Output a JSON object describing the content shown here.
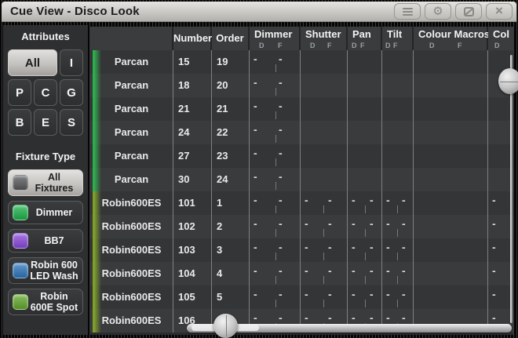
{
  "window": {
    "title": "Cue View - Disco Look",
    "titlebar_buttons": [
      {
        "name": "menu",
        "icon": "menu-icon"
      },
      {
        "name": "settings",
        "icon": "gear-icon",
        "glyph": "⚙"
      },
      {
        "name": "appearance",
        "icon": "appearance-icon"
      },
      {
        "name": "close",
        "icon": "close-icon",
        "glyph": "×"
      }
    ]
  },
  "sidebar": {
    "attributes_header": "Attributes",
    "attribute_buttons": [
      {
        "label": "All",
        "selected": true,
        "span": 2
      },
      {
        "label": "I",
        "selected": false
      },
      {
        "label": "P",
        "selected": false
      },
      {
        "label": "C",
        "selected": false
      },
      {
        "label": "G",
        "selected": false
      },
      {
        "label": "B",
        "selected": false
      },
      {
        "label": "E",
        "selected": false
      },
      {
        "label": "S",
        "selected": false
      }
    ],
    "fixture_type_header": "Fixture Type",
    "fixture_buttons": [
      {
        "label": "All Fixtures",
        "selected": true,
        "swatch": "#58595b"
      },
      {
        "label": "Dimmer",
        "selected": false,
        "swatch": "#1fb24b"
      },
      {
        "label": "BB7",
        "selected": false,
        "swatch": "#8a49dc"
      },
      {
        "label": "Robin 600 LED Wash",
        "selected": false,
        "swatch": "#2e76bc"
      },
      {
        "label": "Robin 600E Spot",
        "selected": false,
        "swatch": "#63a82e"
      }
    ]
  },
  "table": {
    "dash": "-",
    "columns": [
      {
        "key": "name",
        "label": ""
      },
      {
        "key": "number",
        "label": "Number"
      },
      {
        "key": "order",
        "label": "Order"
      },
      {
        "key": "dimmer",
        "label": "Dimmer",
        "sub": [
          "D",
          "F"
        ]
      },
      {
        "key": "shutter",
        "label": "Shutter",
        "sub": [
          "D",
          "F"
        ]
      },
      {
        "key": "pan",
        "label": "Pan",
        "sub": [
          "D",
          "F"
        ]
      },
      {
        "key": "tilt",
        "label": "Tilt",
        "sub": [
          "D",
          "F"
        ]
      },
      {
        "key": "colour_macros",
        "label": "Colour Macros",
        "sub": [
          "D",
          "F"
        ]
      },
      {
        "key": "col",
        "label": "Col",
        "sub": [
          "D"
        ]
      }
    ],
    "stripe_colors": {
      "parcan": "#2fae4e",
      "robin": "#7fa12b"
    },
    "rows": [
      {
        "fixture": "Parcan",
        "number": "15",
        "order": "19",
        "stripe": "parcan",
        "values": {
          "dimmer": [
            "-",
            "-"
          ]
        }
      },
      {
        "fixture": "Parcan",
        "number": "18",
        "order": "20",
        "stripe": "parcan",
        "values": {
          "dimmer": [
            "-",
            "-"
          ]
        }
      },
      {
        "fixture": "Parcan",
        "number": "21",
        "order": "21",
        "stripe": "parcan",
        "values": {
          "dimmer": [
            "-",
            "-"
          ]
        }
      },
      {
        "fixture": "Parcan",
        "number": "24",
        "order": "22",
        "stripe": "parcan",
        "values": {
          "dimmer": [
            "-",
            "-"
          ]
        }
      },
      {
        "fixture": "Parcan",
        "number": "27",
        "order": "23",
        "stripe": "parcan",
        "values": {
          "dimmer": [
            "-",
            "-"
          ]
        }
      },
      {
        "fixture": "Parcan",
        "number": "30",
        "order": "24",
        "stripe": "parcan",
        "values": {
          "dimmer": [
            "-",
            "-"
          ]
        }
      },
      {
        "fixture": "Robin600ES",
        "number": "101",
        "order": "1",
        "stripe": "robin",
        "values": {
          "dimmer": [
            "-",
            "-"
          ],
          "shutter": [
            "-",
            "-"
          ],
          "pan": [
            "-",
            "-"
          ],
          "tilt": [
            "-",
            "-"
          ],
          "col": [
            "-"
          ]
        }
      },
      {
        "fixture": "Robin600ES",
        "number": "102",
        "order": "2",
        "stripe": "robin",
        "values": {
          "dimmer": [
            "-",
            "-"
          ],
          "shutter": [
            "-",
            "-"
          ],
          "pan": [
            "-",
            "-"
          ],
          "tilt": [
            "-",
            "-"
          ],
          "col": [
            "-"
          ]
        }
      },
      {
        "fixture": "Robin600ES",
        "number": "103",
        "order": "3",
        "stripe": "robin",
        "values": {
          "dimmer": [
            "-",
            "-"
          ],
          "shutter": [
            "-",
            "-"
          ],
          "pan": [
            "-",
            "-"
          ],
          "tilt": [
            "-",
            "-"
          ],
          "col": [
            "-"
          ]
        }
      },
      {
        "fixture": "Robin600ES",
        "number": "104",
        "order": "4",
        "stripe": "robin",
        "values": {
          "dimmer": [
            "-",
            "-"
          ],
          "shutter": [
            "-",
            "-"
          ],
          "pan": [
            "-",
            "-"
          ],
          "tilt": [
            "-",
            "-"
          ],
          "col": [
            "-"
          ]
        }
      },
      {
        "fixture": "Robin600ES",
        "number": "105",
        "order": "5",
        "stripe": "robin",
        "values": {
          "dimmer": [
            "-",
            "-"
          ],
          "shutter": [
            "-",
            "-"
          ],
          "pan": [
            "-",
            "-"
          ],
          "tilt": [
            "-",
            "-"
          ],
          "col": [
            "-"
          ]
        }
      },
      {
        "fixture": "Robin600ES",
        "number": "106",
        "order": "6",
        "stripe": "robin",
        "values": {
          "dimmer": [
            "-",
            "-"
          ],
          "shutter": [
            "-",
            "-"
          ],
          "pan": [
            "-",
            "-"
          ],
          "tilt": [
            "-",
            "-"
          ],
          "col": [
            "-"
          ]
        }
      }
    ]
  }
}
